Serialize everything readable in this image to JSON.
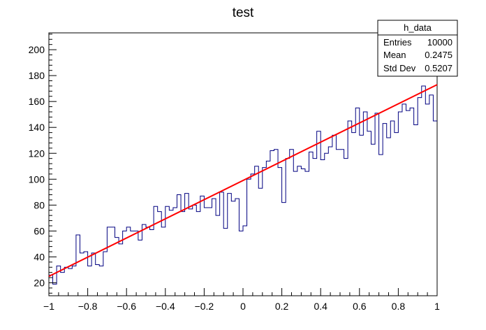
{
  "chart_data": {
    "type": "histogram",
    "title": "test",
    "xlabel": "",
    "ylabel": "",
    "xlim": [
      -1,
      1
    ],
    "ylim": [
      10,
      213
    ],
    "bin_count": 100,
    "x_ticks": [
      -1,
      -0.8,
      -0.6,
      -0.4,
      -0.2,
      0,
      0.2,
      0.4,
      0.6,
      0.8,
      1
    ],
    "x_tick_labels": [
      "−1",
      "−0.8",
      "−0.6",
      "−0.4",
      "−0.2",
      "0",
      "0.2",
      "0.4",
      "0.6",
      "0.8",
      "1"
    ],
    "y_ticks": [
      20,
      40,
      60,
      80,
      100,
      120,
      140,
      160,
      180,
      200
    ],
    "y_tick_labels": [
      "20",
      "40",
      "60",
      "80",
      "100",
      "120",
      "140",
      "160",
      "180",
      "200"
    ],
    "series": [
      {
        "kind": "histogram",
        "color": "#000080",
        "values": [
          26,
          19,
          33,
          28,
          32,
          31,
          33,
          57,
          43,
          44,
          33,
          43,
          34,
          33,
          44,
          63,
          63,
          55,
          50,
          60,
          63,
          60,
          60,
          53,
          65,
          63,
          61,
          79,
          75,
          63,
          79,
          76,
          78,
          88,
          75,
          89,
          77,
          80,
          75,
          87,
          78,
          78,
          85,
          72,
          90,
          62,
          89,
          83,
          85,
          60,
          64,
          100,
          104,
          110,
          93,
          109,
          114,
          122,
          123,
          109,
          82,
          116,
          123,
          106,
          110,
          108,
          106,
          121,
          116,
          137,
          115,
          120,
          125,
          134,
          123,
          123,
          116,
          145,
          136,
          155,
          134,
          152,
          137,
          127,
          151,
          119,
          143,
          132,
          145,
          136,
          152,
          158,
          153,
          155,
          142,
          163,
          172,
          158,
          165,
          145
        ],
        "values_note": ""
      },
      {
        "kind": "fit",
        "color": "#ff0000",
        "x": [
          -1,
          1
        ],
        "y": [
          25,
          173
        ]
      }
    ],
    "stats_box": {
      "name": "h_data",
      "rows": [
        {
          "label": "Entries",
          "value": "10000"
        },
        {
          "label": "Mean",
          "value": "0.2475"
        },
        {
          "label": "Std Dev",
          "value": "0.5207"
        }
      ]
    },
    "grid": false,
    "legend": "top-right"
  }
}
